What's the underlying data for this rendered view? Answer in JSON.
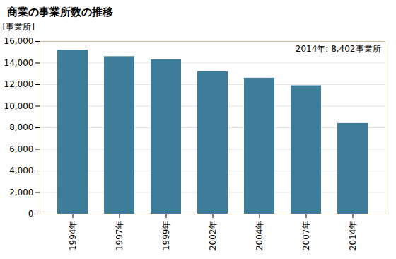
{
  "chart_data": {
    "type": "bar",
    "title": "商業の事業所数の推移",
    "ylabel": "[事業所]",
    "annotation": "2014年: 8,402事業所",
    "categories": [
      "1994年",
      "1997年",
      "1999年",
      "2002年",
      "2004年",
      "2007年",
      "2014年"
    ],
    "values": [
      15200,
      14600,
      14300,
      13200,
      12600,
      11900,
      8402
    ],
    "color": "#3d7d9a",
    "ylim": [
      0,
      16000
    ],
    "yticks": [
      0,
      {
        "value": 2000,
        "label": "2,000"
      },
      {
        "value": 4000,
        "label": "4,000"
      },
      {
        "value": 6000,
        "label": "6,000"
      },
      {
        "value": 8000,
        "label": "8,000"
      },
      {
        "value": 10000,
        "label": "10,000"
      },
      {
        "value": 12000,
        "label": "12,000"
      },
      {
        "value": 14000,
        "label": "14,000"
      },
      {
        "value": 16000,
        "label": "16,000"
      }
    ],
    "grid": true
  }
}
